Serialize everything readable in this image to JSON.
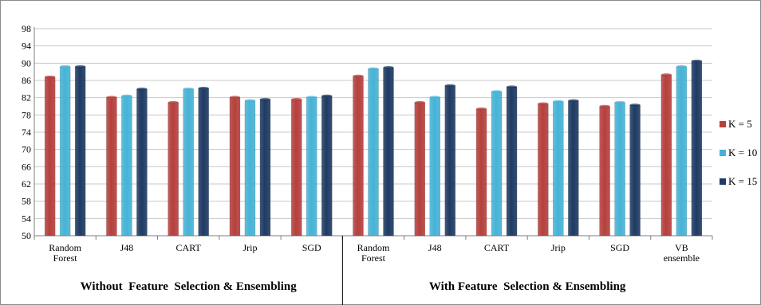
{
  "chart_data": {
    "type": "bar",
    "title": "",
    "xlabel": "",
    "ylabel": "",
    "ylim": [
      50,
      98
    ],
    "yticks": [
      50,
      54,
      58,
      62,
      66,
      70,
      74,
      78,
      82,
      86,
      90,
      94,
      98
    ],
    "grid": true,
    "legend_position": "right",
    "categories": [
      [
        "Random",
        "Forest"
      ],
      [
        "J48"
      ],
      [
        "CART"
      ],
      [
        "Jrip"
      ],
      [
        "SGD"
      ],
      [
        "Random",
        "Forest"
      ],
      [
        "J48"
      ],
      [
        "CART"
      ],
      [
        "Jrip"
      ],
      [
        "SGD"
      ],
      [
        "VB",
        "ensemble"
      ]
    ],
    "groups": [
      {
        "label": "Without  Feature  Selection & Ensembling",
        "count": 5
      },
      {
        "label": "With Feature  Selection & Ensembling",
        "count": 6
      }
    ],
    "series": [
      {
        "name": "K = 5",
        "color": "#b5403d",
        "values": [
          86.8,
          82.1,
          80.9,
          82.1,
          81.6,
          87.0,
          80.9,
          79.4,
          80.6,
          80.0,
          87.3
        ]
      },
      {
        "name": "K = 10",
        "color": "#46b3d6",
        "values": [
          89.2,
          82.4,
          84.0,
          81.3,
          82.1,
          88.7,
          82.1,
          83.4,
          81.1,
          80.9,
          89.2
        ]
      },
      {
        "name": "K = 15",
        "color": "#1f3b63",
        "values": [
          89.2,
          84.0,
          84.2,
          81.6,
          82.4,
          89.0,
          84.8,
          84.5,
          81.3,
          80.3,
          90.5
        ]
      }
    ]
  }
}
